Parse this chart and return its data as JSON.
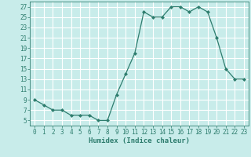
{
  "x": [
    0,
    1,
    2,
    3,
    4,
    5,
    6,
    7,
    8,
    9,
    10,
    11,
    12,
    13,
    14,
    15,
    16,
    17,
    18,
    19,
    20,
    21,
    22,
    23
  ],
  "y": [
    9,
    8,
    7,
    7,
    6,
    6,
    6,
    5,
    5,
    10,
    14,
    18,
    26,
    25,
    25,
    27,
    27,
    26,
    27,
    26,
    21,
    15,
    13,
    13
  ],
  "line_color": "#2e7d6e",
  "marker_color": "#2e7d6e",
  "bg_color": "#c8ecea",
  "grid_color": "#ffffff",
  "xlabel": "Humidex (Indice chaleur)",
  "xlim": [
    -0.5,
    23.5
  ],
  "ylim": [
    4,
    28
  ],
  "yticks": [
    5,
    7,
    9,
    11,
    13,
    15,
    17,
    19,
    21,
    23,
    25,
    27
  ],
  "xticks": [
    0,
    1,
    2,
    3,
    4,
    5,
    6,
    7,
    8,
    9,
    10,
    11,
    12,
    13,
    14,
    15,
    16,
    17,
    18,
    19,
    20,
    21,
    22,
    23
  ],
  "tick_font_size": 5.5,
  "label_font_size": 6.5
}
